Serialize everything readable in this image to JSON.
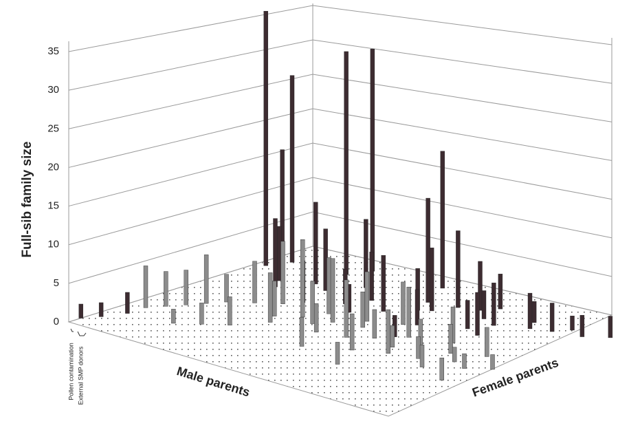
{
  "chart_data": {
    "type": "bar3d",
    "y_label": "Full-sib family size",
    "x_label": "Male parents",
    "z_label": "Female parents",
    "annotations": [
      "Pollen contamination",
      "External SMP donors"
    ],
    "ylim": [
      0,
      35
    ],
    "yticks": [
      0,
      5,
      10,
      15,
      20,
      25,
      30,
      35
    ],
    "xlim": [
      0,
      40
    ],
    "zlim": [
      0,
      40
    ],
    "grid": true,
    "series": [
      {
        "color": "#3d2c31",
        "male": [
          1,
          2,
          0,
          8,
          9,
          19,
          17,
          0,
          1,
          2,
          5,
          6,
          8,
          10,
          11,
          12,
          14,
          15,
          16,
          18,
          20,
          21,
          22,
          23,
          24,
          25,
          26,
          28,
          30,
          31,
          33,
          34,
          36,
          38,
          27,
          29,
          24
        ],
        "female": [
          31,
          34,
          35,
          35,
          38,
          34,
          39,
          2,
          4,
          7,
          28,
          26,
          30,
          29,
          24,
          33,
          27,
          30,
          25,
          28,
          31,
          32,
          35,
          27,
          36,
          38,
          34,
          33,
          37,
          35,
          36,
          38,
          37,
          39,
          30,
          29,
          22
        ],
        "values": [
          38,
          28,
          16,
          33,
          33,
          15,
          20,
          2,
          2,
          3,
          8,
          10,
          12,
          9,
          6,
          10,
          5,
          7,
          4,
          8,
          6,
          9,
          11,
          5,
          7,
          5,
          4,
          6,
          3,
          5,
          4,
          2,
          3,
          3,
          4,
          6,
          3
        ]
      },
      {
        "color": "#8c8c8c",
        "male": [
          2,
          3,
          4,
          5,
          6,
          8,
          10,
          12,
          13,
          14,
          15,
          16,
          17,
          18,
          19,
          20,
          21,
          22,
          23,
          24,
          25,
          26,
          27,
          28,
          29,
          30,
          31,
          32,
          33,
          34,
          35,
          36,
          37,
          11,
          9,
          7,
          20,
          26
        ],
        "female": [
          10,
          12,
          14,
          16,
          18,
          20,
          22,
          18,
          16,
          20,
          23,
          19,
          21,
          17,
          24,
          22,
          18,
          26,
          20,
          15,
          23,
          19,
          17,
          21,
          25,
          18,
          22,
          16,
          20,
          24,
          19,
          14,
          21,
          12,
          10,
          8,
          12,
          10
        ],
        "values": [
          6,
          5,
          5,
          7,
          4,
          6,
          9,
          5,
          7,
          11,
          8,
          6,
          9,
          4,
          7,
          5,
          8,
          6,
          4,
          5,
          7,
          3,
          6,
          4,
          5,
          3,
          4,
          3,
          2,
          4,
          2,
          3,
          2,
          4,
          3,
          2,
          4,
          3
        ]
      }
    ]
  }
}
